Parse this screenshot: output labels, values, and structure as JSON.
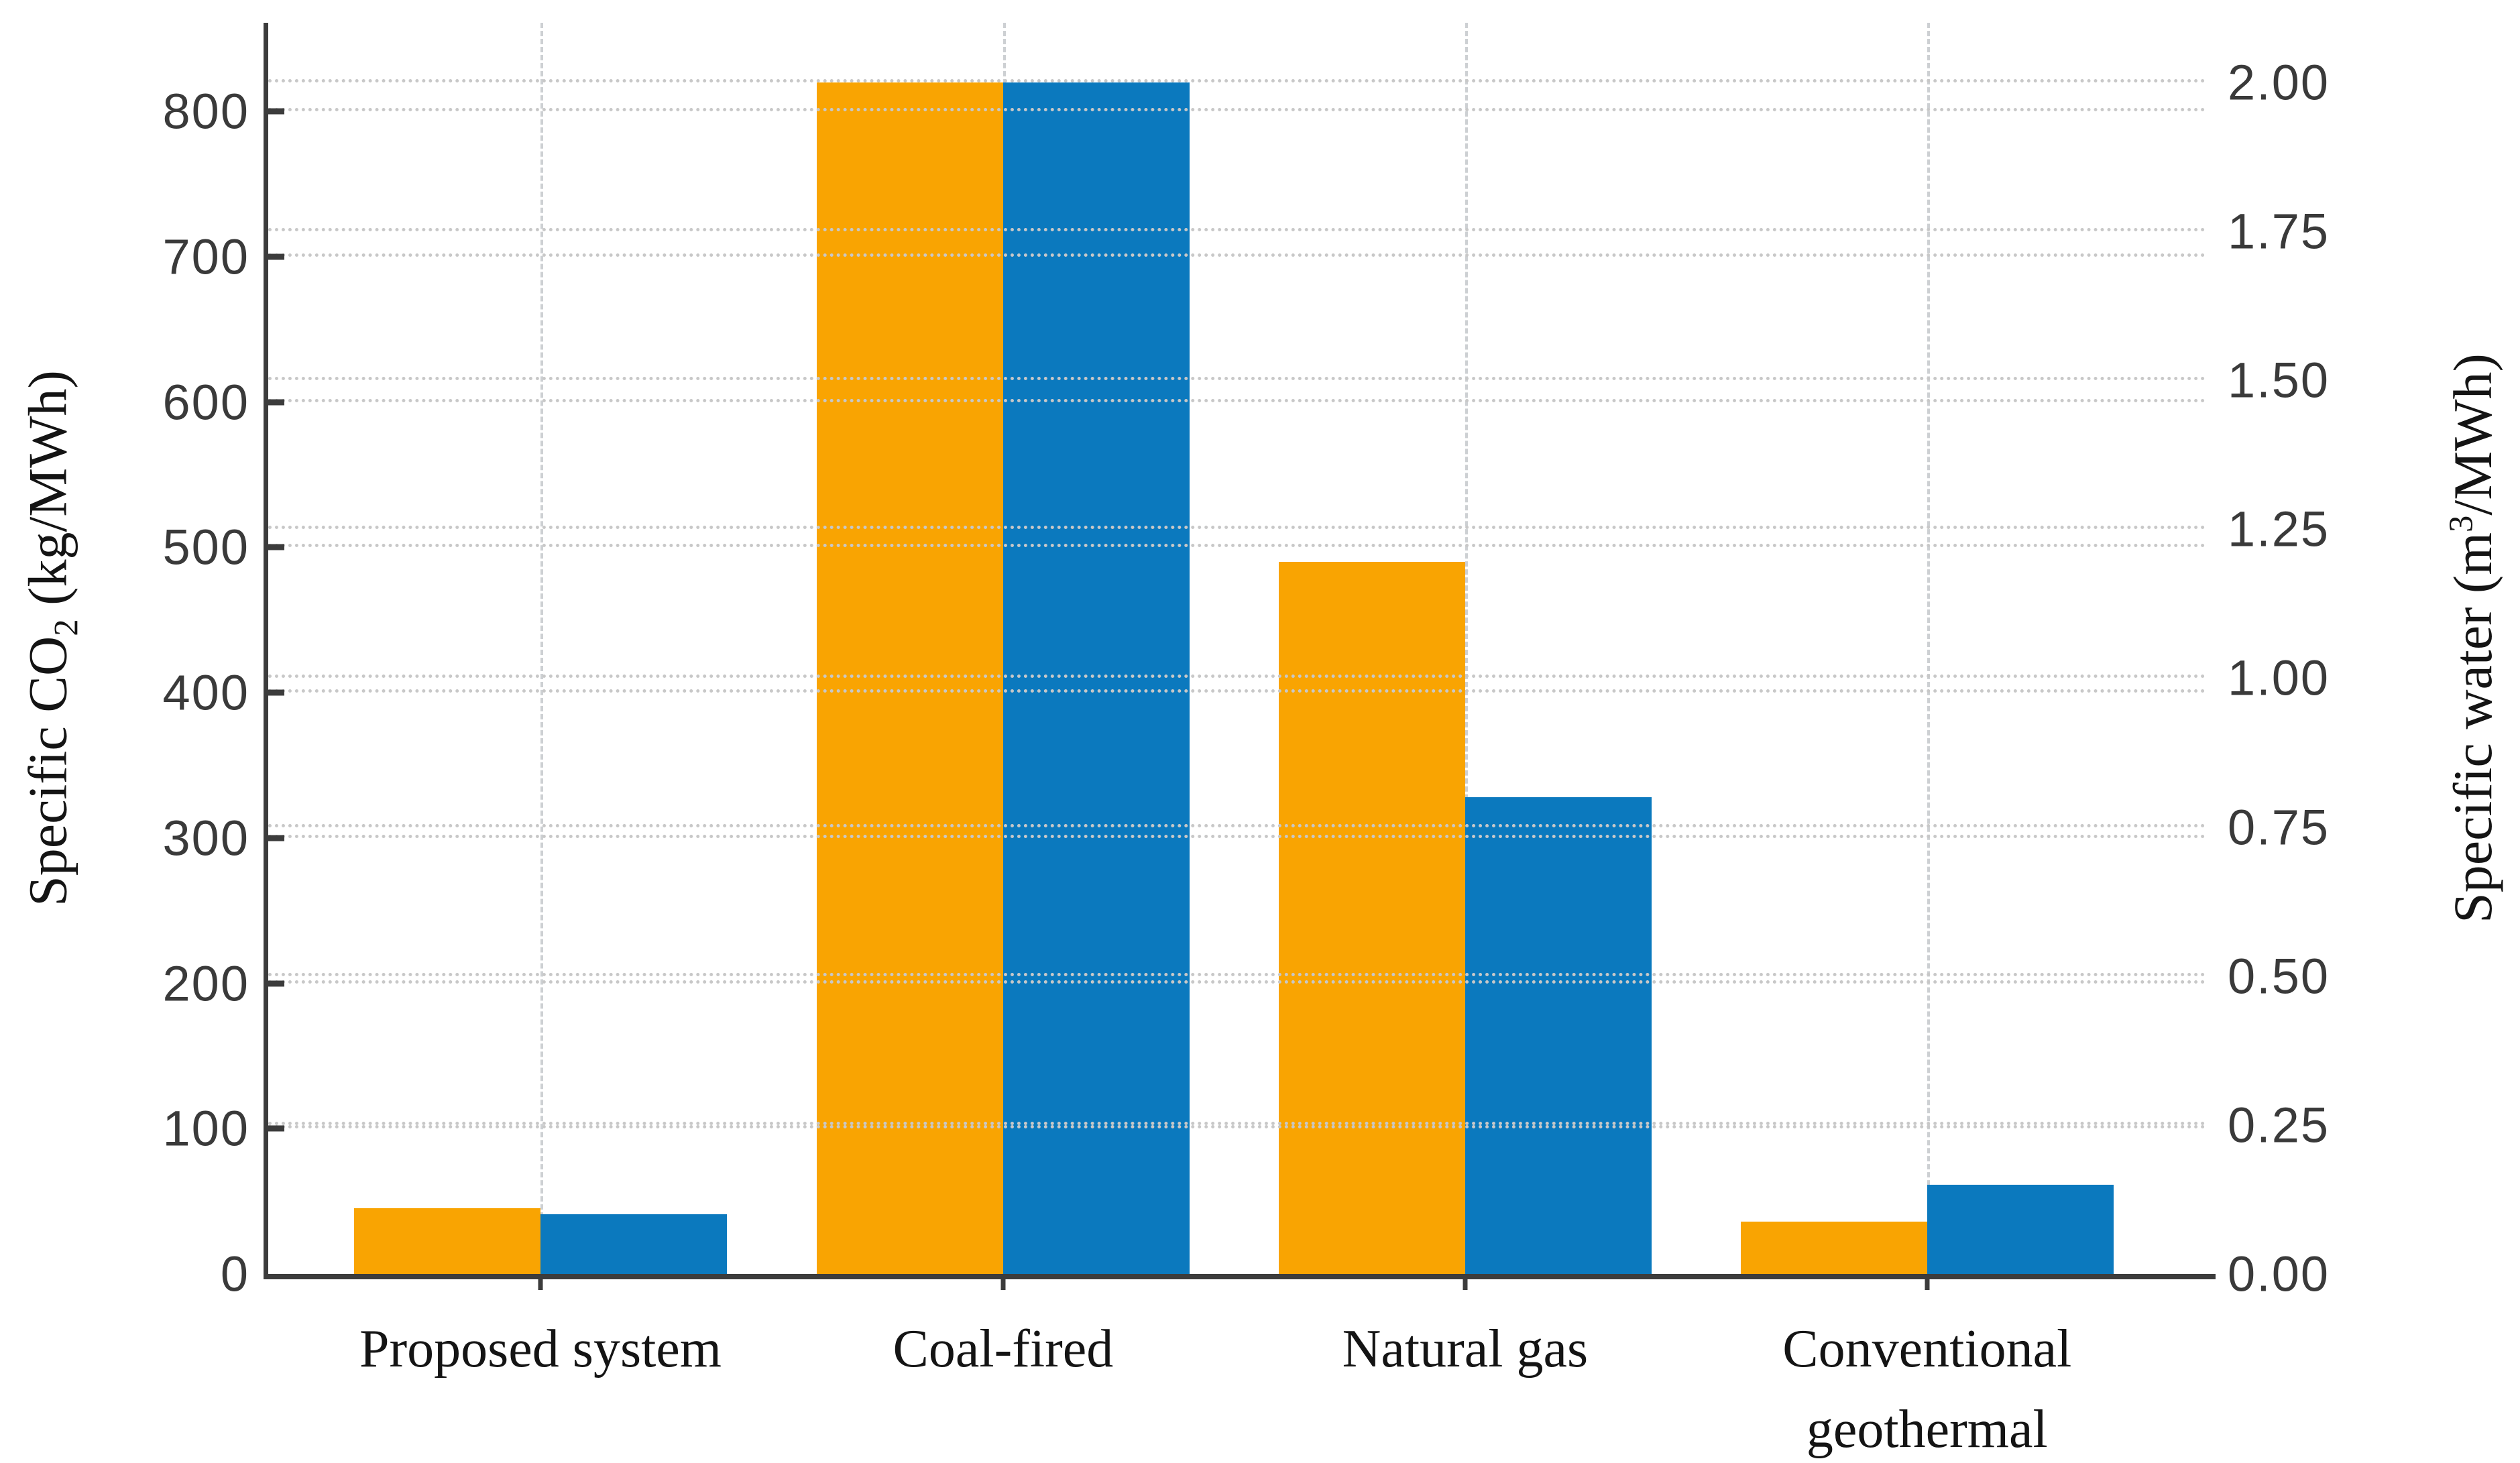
{
  "chart_data": {
    "type": "bar",
    "subtype": "grouped-dual-axis",
    "title": "",
    "categories": [
      "Proposed system",
      "Coal-fired",
      "Natural gas",
      "Conventional geothermal"
    ],
    "category_label_lines": [
      [
        "Proposed system"
      ],
      [
        "Coal-fired"
      ],
      [
        "Natural gas"
      ],
      [
        "Conventional",
        "geothermal"
      ]
    ],
    "series": [
      {
        "name": "Specific CO2 (kg/MWh)",
        "axis": "left",
        "color": "#F9A402",
        "values": [
          45,
          820,
          490,
          36
        ]
      },
      {
        "name": "Specific water (m3/MWh)",
        "axis": "right",
        "color": "#0B79BE",
        "values": [
          0.1,
          2.0,
          0.8,
          0.15
        ]
      }
    ],
    "left_axis": {
      "label_prefix": "Specific CO",
      "label_sub": "2",
      "label_suffix": " (kg/MWh)",
      "tick_labels": [
        "0",
        "100",
        "200",
        "300",
        "400",
        "500",
        "600",
        "700",
        "800"
      ],
      "tick_values": [
        0,
        100,
        200,
        300,
        400,
        500,
        600,
        700,
        800
      ],
      "ylim": [
        0,
        861
      ]
    },
    "right_axis": {
      "label_prefix": "Specific water (m",
      "label_sup": "3",
      "label_suffix": "/MWh)",
      "tick_labels": [
        "0.00",
        "0.25",
        "0.50",
        "0.75",
        "1.00",
        "1.25",
        "1.50",
        "1.75",
        "2.00"
      ],
      "tick_values": [
        0,
        0.25,
        0.5,
        0.75,
        1.0,
        1.25,
        1.5,
        1.75,
        2.0
      ],
      "ylim": [
        0,
        2.1
      ],
      "left_units_per_right_unit": 410
    },
    "grid": {
      "horizontal_style": "dotted",
      "vertical_style": "dashed",
      "color": "#c8c8c8",
      "horizontal_lines_for_both_axes": true
    },
    "legend_position": "none",
    "spine_color": "#3c3c3c",
    "tick_label_color": "#3a3a3a"
  }
}
